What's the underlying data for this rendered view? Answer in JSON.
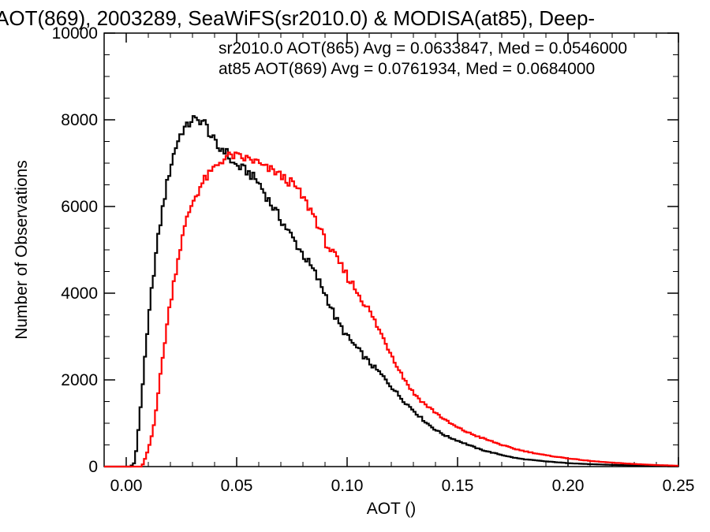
{
  "chart_data": {
    "type": "line",
    "title": "AOT(869), 2003289, SeaWiFS(sr2010.0) & MODISA(at85), Deep-",
    "xlabel": "AOT ()",
    "ylabel": "Number of Observations",
    "xlim": [
      -0.01,
      0.25
    ],
    "ylim": [
      0,
      10000
    ],
    "x_ticks": [
      0.0,
      0.05,
      0.1,
      0.15,
      0.2,
      0.25
    ],
    "x_tick_labels": [
      "0.00",
      "0.05",
      "0.10",
      "0.15",
      "0.20",
      "0.25"
    ],
    "y_ticks": [
      0,
      2000,
      4000,
      6000,
      8000,
      10000
    ],
    "y_tick_labels": [
      "0",
      "2000",
      "4000",
      "6000",
      "8000",
      "10000"
    ],
    "grid": false,
    "bin_width": 0.001,
    "series": [
      {
        "name": "sr2010.0 AOT(865) Avg = 0.0633847, Med = 0.0546000",
        "color": "#000000",
        "points": [
          [
            -0.01,
            0
          ],
          [
            0.002,
            0
          ],
          [
            0.004,
            100
          ],
          [
            0.006,
            1100
          ],
          [
            0.008,
            2200
          ],
          [
            0.01,
            3300
          ],
          [
            0.012,
            4300
          ],
          [
            0.014,
            5100
          ],
          [
            0.016,
            5800
          ],
          [
            0.018,
            6400
          ],
          [
            0.02,
            6900
          ],
          [
            0.022,
            7300
          ],
          [
            0.024,
            7600
          ],
          [
            0.026,
            7800
          ],
          [
            0.028,
            7850
          ],
          [
            0.03,
            8050
          ],
          [
            0.032,
            7950
          ],
          [
            0.034,
            8000
          ],
          [
            0.036,
            7900
          ],
          [
            0.038,
            7650
          ],
          [
            0.04,
            7500
          ],
          [
            0.042,
            7300
          ],
          [
            0.044,
            7350
          ],
          [
            0.046,
            7200
          ],
          [
            0.048,
            7000
          ],
          [
            0.05,
            6950
          ],
          [
            0.055,
            6800
          ],
          [
            0.06,
            6550
          ],
          [
            0.065,
            6100
          ],
          [
            0.07,
            5700
          ],
          [
            0.075,
            5300
          ],
          [
            0.08,
            4900
          ],
          [
            0.085,
            4500
          ],
          [
            0.09,
            4000
          ],
          [
            0.095,
            3400
          ],
          [
            0.1,
            3000
          ],
          [
            0.105,
            2700
          ],
          [
            0.11,
            2400
          ],
          [
            0.115,
            2150
          ],
          [
            0.12,
            1850
          ],
          [
            0.125,
            1550
          ],
          [
            0.13,
            1300
          ],
          [
            0.135,
            1050
          ],
          [
            0.14,
            850
          ],
          [
            0.145,
            700
          ],
          [
            0.15,
            600
          ],
          [
            0.155,
            500
          ],
          [
            0.16,
            400
          ],
          [
            0.165,
            330
          ],
          [
            0.17,
            270
          ],
          [
            0.175,
            210
          ],
          [
            0.18,
            170
          ],
          [
            0.19,
            120
          ],
          [
            0.2,
            80
          ],
          [
            0.21,
            55
          ],
          [
            0.22,
            40
          ],
          [
            0.23,
            25
          ],
          [
            0.24,
            15
          ],
          [
            0.25,
            10
          ]
        ]
      },
      {
        "name": "at85 AOT(869) Avg = 0.0761934, Med = 0.0684000",
        "color": "#ff0000",
        "points": [
          [
            -0.01,
            0
          ],
          [
            0.007,
            0
          ],
          [
            0.008,
            100
          ],
          [
            0.01,
            400
          ],
          [
            0.012,
            800
          ],
          [
            0.014,
            1500
          ],
          [
            0.016,
            2300
          ],
          [
            0.018,
            3100
          ],
          [
            0.02,
            3800
          ],
          [
            0.022,
            4400
          ],
          [
            0.024,
            4950
          ],
          [
            0.026,
            5400
          ],
          [
            0.028,
            5800
          ],
          [
            0.03,
            6100
          ],
          [
            0.032,
            6300
          ],
          [
            0.034,
            6500
          ],
          [
            0.036,
            6650
          ],
          [
            0.038,
            6750
          ],
          [
            0.04,
            6900
          ],
          [
            0.042,
            7000
          ],
          [
            0.044,
            7100
          ],
          [
            0.046,
            7150
          ],
          [
            0.048,
            7180
          ],
          [
            0.05,
            7150
          ],
          [
            0.052,
            7120
          ],
          [
            0.055,
            7100
          ],
          [
            0.058,
            7050
          ],
          [
            0.06,
            7000
          ],
          [
            0.062,
            6900
          ],
          [
            0.065,
            6850
          ],
          [
            0.068,
            6800
          ],
          [
            0.07,
            6700
          ],
          [
            0.073,
            6600
          ],
          [
            0.076,
            6500
          ],
          [
            0.08,
            6200
          ],
          [
            0.085,
            5800
          ],
          [
            0.09,
            5200
          ],
          [
            0.095,
            4800
          ],
          [
            0.1,
            4400
          ],
          [
            0.105,
            4000
          ],
          [
            0.11,
            3600
          ],
          [
            0.115,
            3100
          ],
          [
            0.12,
            2600
          ],
          [
            0.125,
            2100
          ],
          [
            0.13,
            1700
          ],
          [
            0.135,
            1450
          ],
          [
            0.14,
            1250
          ],
          [
            0.145,
            1050
          ],
          [
            0.15,
            900
          ],
          [
            0.155,
            780
          ],
          [
            0.16,
            680
          ],
          [
            0.165,
            590
          ],
          [
            0.17,
            500
          ],
          [
            0.175,
            420
          ],
          [
            0.18,
            360
          ],
          [
            0.19,
            260
          ],
          [
            0.2,
            190
          ],
          [
            0.21,
            130
          ],
          [
            0.22,
            90
          ],
          [
            0.23,
            60
          ],
          [
            0.24,
            35
          ],
          [
            0.25,
            20
          ]
        ]
      }
    ]
  }
}
